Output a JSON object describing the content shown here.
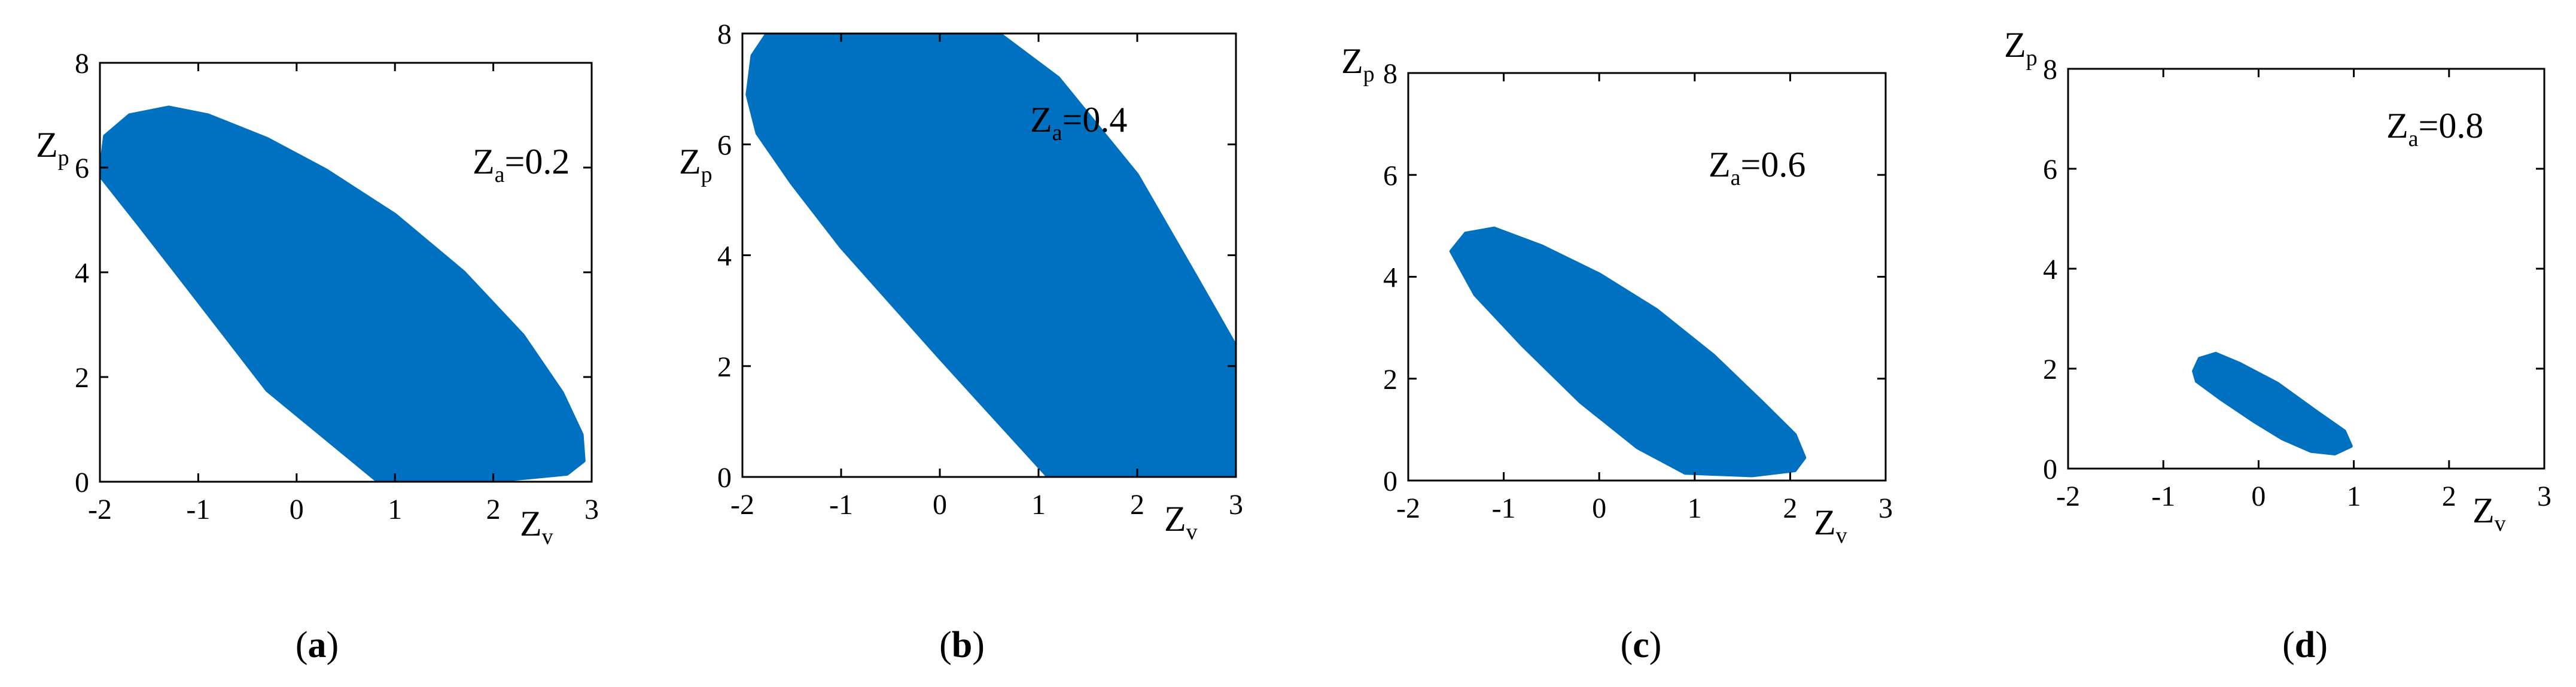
{
  "chart_data": [
    {
      "type": "scatter",
      "panel": "a",
      "caption": "(a)",
      "annotation": {
        "var": "Z",
        "sub": "a",
        "text": "=0.2"
      },
      "xlabel": {
        "var": "Z",
        "sub": "v"
      },
      "ylabel": {
        "var": "Z",
        "sub": "p"
      },
      "xlim": [
        -2,
        3
      ],
      "ylim": [
        0,
        8
      ],
      "xticks": [
        "-2",
        "-1",
        "0",
        "1",
        "2",
        "3"
      ],
      "yticks": [
        "0",
        "2",
        "4",
        "6",
        "8"
      ],
      "grid": false,
      "color": "#0070c0",
      "region": [
        [
          -1.95,
          6.6
        ],
        [
          -1.7,
          7.0
        ],
        [
          -1.3,
          7.15
        ],
        [
          -0.9,
          7.0
        ],
        [
          -0.3,
          6.55
        ],
        [
          0.3,
          5.95
        ],
        [
          1.0,
          5.1
        ],
        [
          1.7,
          4.0
        ],
        [
          2.3,
          2.8
        ],
        [
          2.7,
          1.7
        ],
        [
          2.9,
          0.9
        ],
        [
          2.92,
          0.4
        ],
        [
          2.75,
          0.15
        ],
        [
          2.2,
          0.05
        ],
        [
          0.8,
          0.05
        ],
        [
          -0.3,
          1.75
        ],
        [
          -1.0,
          3.45
        ],
        [
          -1.6,
          4.9
        ],
        [
          -2.0,
          5.85
        ]
      ]
    },
    {
      "type": "scatter",
      "panel": "b",
      "caption": "(b)",
      "annotation": {
        "var": "Z",
        "sub": "a",
        "text": "=0.4"
      },
      "xlabel": {
        "var": "Z",
        "sub": "v"
      },
      "ylabel": {
        "var": "Z",
        "sub": "p"
      },
      "xlim": [
        -2,
        3
      ],
      "ylim": [
        0,
        8
      ],
      "xticks": [
        "-2",
        "-1",
        "0",
        "1",
        "2",
        "3"
      ],
      "yticks": [
        "0",
        "2",
        "4",
        "6",
        "8"
      ],
      "grid": false,
      "color": "#0070c0",
      "region": [
        [
          -1.75,
          8.0
        ],
        [
          0.6,
          8.0
        ],
        [
          1.2,
          7.2
        ],
        [
          2.0,
          5.45
        ],
        [
          2.6,
          3.6
        ],
        [
          3.0,
          2.35
        ],
        [
          3.0,
          0.0
        ],
        [
          1.1,
          0.0
        ],
        [
          0.0,
          2.15
        ],
        [
          -1.0,
          4.15
        ],
        [
          -1.5,
          5.3
        ],
        [
          -1.85,
          6.2
        ],
        [
          -1.95,
          6.9
        ],
        [
          -1.9,
          7.6
        ]
      ]
    },
    {
      "type": "scatter",
      "panel": "c",
      "caption": "(c)",
      "annotation": {
        "var": "Z",
        "sub": "a",
        "text": "=0.6"
      },
      "xlabel": {
        "var": "Z",
        "sub": "v"
      },
      "ylabel": {
        "var": "Z",
        "sub": "p"
      },
      "xlim": [
        -2,
        3
      ],
      "ylim": [
        0,
        8
      ],
      "xticks": [
        "-2",
        "-1",
        "0",
        "1",
        "2",
        "3"
      ],
      "yticks": [
        "0",
        "2",
        "4",
        "6",
        "8"
      ],
      "grid": false,
      "color": "#0070c0",
      "region": [
        [
          -1.55,
          4.5
        ],
        [
          -1.4,
          4.85
        ],
        [
          -1.1,
          4.95
        ],
        [
          -0.6,
          4.6
        ],
        [
          0.0,
          4.05
        ],
        [
          0.6,
          3.35
        ],
        [
          1.2,
          2.45
        ],
        [
          1.7,
          1.55
        ],
        [
          2.05,
          0.9
        ],
        [
          2.15,
          0.45
        ],
        [
          2.05,
          0.2
        ],
        [
          1.6,
          0.1
        ],
        [
          0.9,
          0.15
        ],
        [
          0.4,
          0.65
        ],
        [
          -0.2,
          1.55
        ],
        [
          -0.8,
          2.65
        ],
        [
          -1.3,
          3.65
        ]
      ]
    },
    {
      "type": "scatter",
      "panel": "d",
      "caption": "(d)",
      "annotation": {
        "var": "Z",
        "sub": "a",
        "text": "=0.8"
      },
      "xlabel": {
        "var": "Z",
        "sub": "v"
      },
      "ylabel": {
        "var": "Z",
        "sub": "p"
      },
      "xlim": [
        -2,
        3
      ],
      "ylim": [
        0,
        8
      ],
      "xticks": [
        "-2",
        "-1",
        "0",
        "1",
        "2",
        "3"
      ],
      "yticks": [
        "0",
        "2",
        "4",
        "6",
        "8"
      ],
      "grid": false,
      "color": "#0070c0",
      "region": [
        [
          -0.68,
          1.95
        ],
        [
          -0.62,
          2.2
        ],
        [
          -0.45,
          2.3
        ],
        [
          -0.2,
          2.1
        ],
        [
          0.2,
          1.7
        ],
        [
          0.6,
          1.15
        ],
        [
          0.9,
          0.75
        ],
        [
          0.97,
          0.45
        ],
        [
          0.8,
          0.3
        ],
        [
          0.55,
          0.35
        ],
        [
          0.25,
          0.6
        ],
        [
          -0.05,
          0.95
        ],
        [
          -0.4,
          1.4
        ],
        [
          -0.65,
          1.75
        ]
      ]
    }
  ]
}
